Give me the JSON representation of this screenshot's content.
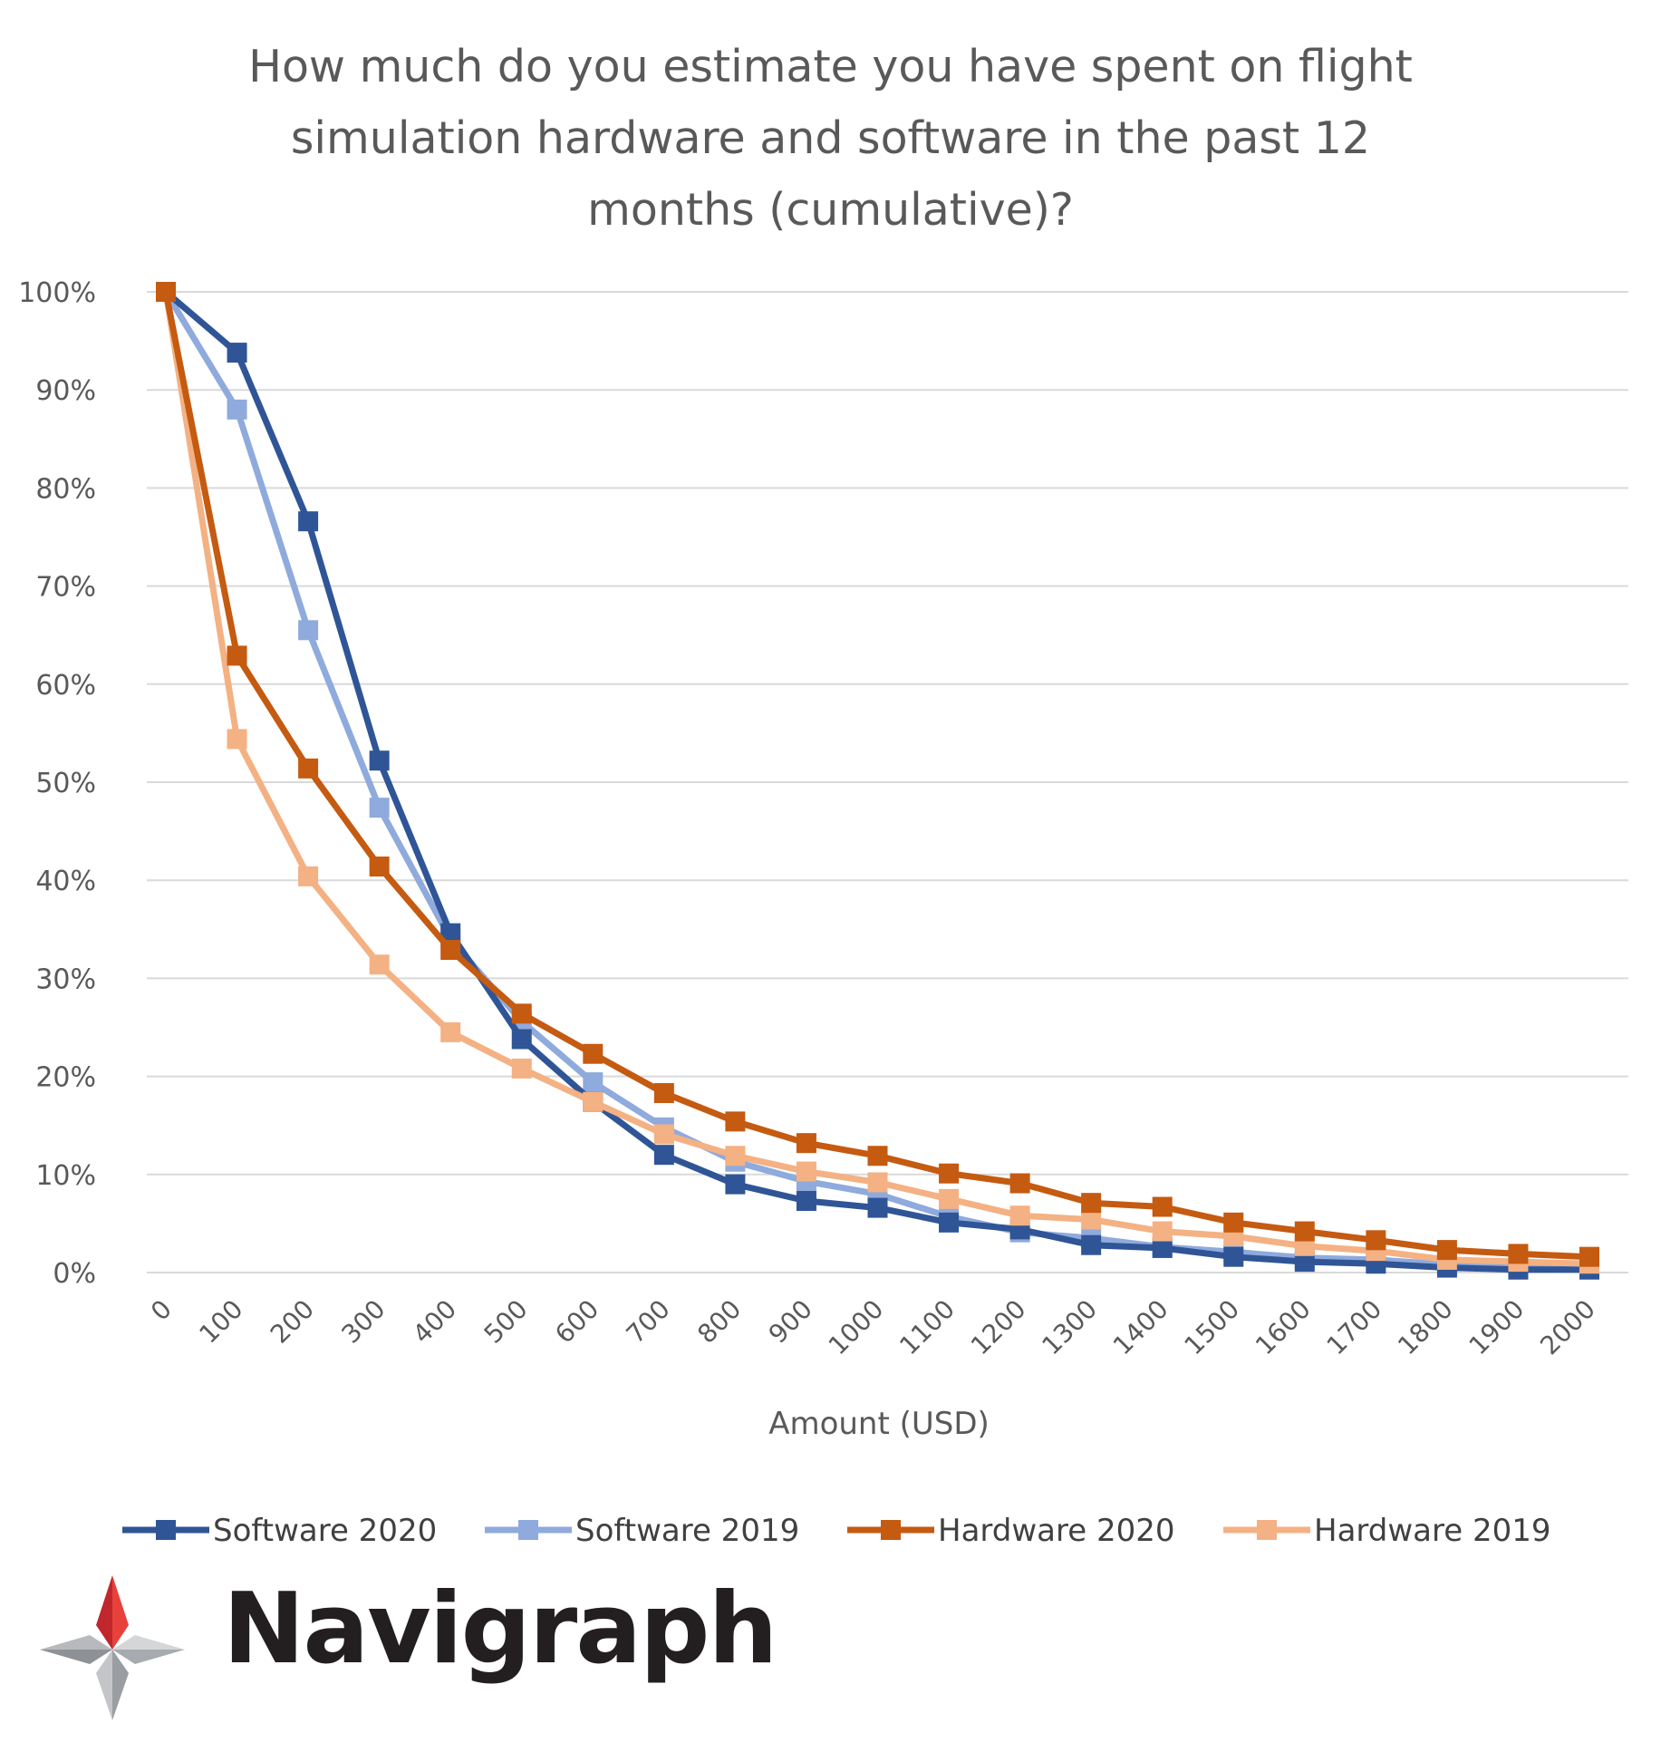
{
  "title_lines": [
    "How much do you estimate you have spent on flight",
    "simulation hardware and software in the past 12",
    "months (cumulative)?"
  ],
  "logo": {
    "text": "Navigraph"
  },
  "colors": {
    "software_2020": "#2f5597",
    "software_2019": "#8faadc",
    "hardware_2020": "#c55a11",
    "hardware_2019": "#f4b183",
    "gridline": "#d9d9d9",
    "text": "#595959"
  },
  "chart_data": {
    "type": "line",
    "title": "How much do you estimate you have spent on flight simulation hardware and software in the past 12 months (cumulative)?",
    "xlabel": "Amount (USD)",
    "ylabel": "",
    "x": [
      "0",
      "100",
      "200",
      "300",
      "400",
      "500",
      "600",
      "700",
      "800",
      "900",
      "1000",
      "1100",
      "1200",
      "1300",
      "1400",
      "1500",
      "1600",
      "1700",
      "1800",
      "1900",
      "2000"
    ],
    "ylim": [
      0,
      100
    ],
    "yticks": [
      "0%",
      "10%",
      "20%",
      "30%",
      "40%",
      "50%",
      "60%",
      "70%",
      "80%",
      "90%",
      "100%"
    ],
    "grid": true,
    "legend": "bottom",
    "series": [
      {
        "name": "Software 2020",
        "values": [
          100,
          93.8,
          76.6,
          52.2,
          34.6,
          23.8,
          17.4,
          12.0,
          9.0,
          7.3,
          6.6,
          5.1,
          4.4,
          2.8,
          2.5,
          1.6,
          1.1,
          0.9,
          0.5,
          0.3,
          0.3
        ]
      },
      {
        "name": "Software 2019",
        "values": [
          100,
          88.0,
          65.5,
          47.4,
          34.0,
          25.6,
          19.4,
          14.8,
          11.3,
          9.3,
          8.0,
          5.7,
          4.1,
          3.5,
          2.6,
          2.1,
          1.5,
          1.3,
          0.8,
          0.6,
          0.5
        ]
      },
      {
        "name": "Hardware 2020",
        "values": [
          100,
          62.9,
          51.4,
          41.4,
          32.9,
          26.4,
          22.3,
          18.3,
          15.4,
          13.2,
          11.9,
          10.1,
          9.1,
          7.1,
          6.7,
          5.1,
          4.2,
          3.3,
          2.3,
          1.9,
          1.6
        ]
      },
      {
        "name": "Hardware 2019",
        "values": [
          100,
          54.4,
          40.4,
          31.4,
          24.5,
          20.8,
          17.4,
          14.1,
          11.9,
          10.3,
          9.2,
          7.5,
          5.8,
          5.4,
          4.2,
          3.7,
          2.7,
          2.2,
          1.3,
          1.1,
          0.9
        ]
      }
    ]
  }
}
